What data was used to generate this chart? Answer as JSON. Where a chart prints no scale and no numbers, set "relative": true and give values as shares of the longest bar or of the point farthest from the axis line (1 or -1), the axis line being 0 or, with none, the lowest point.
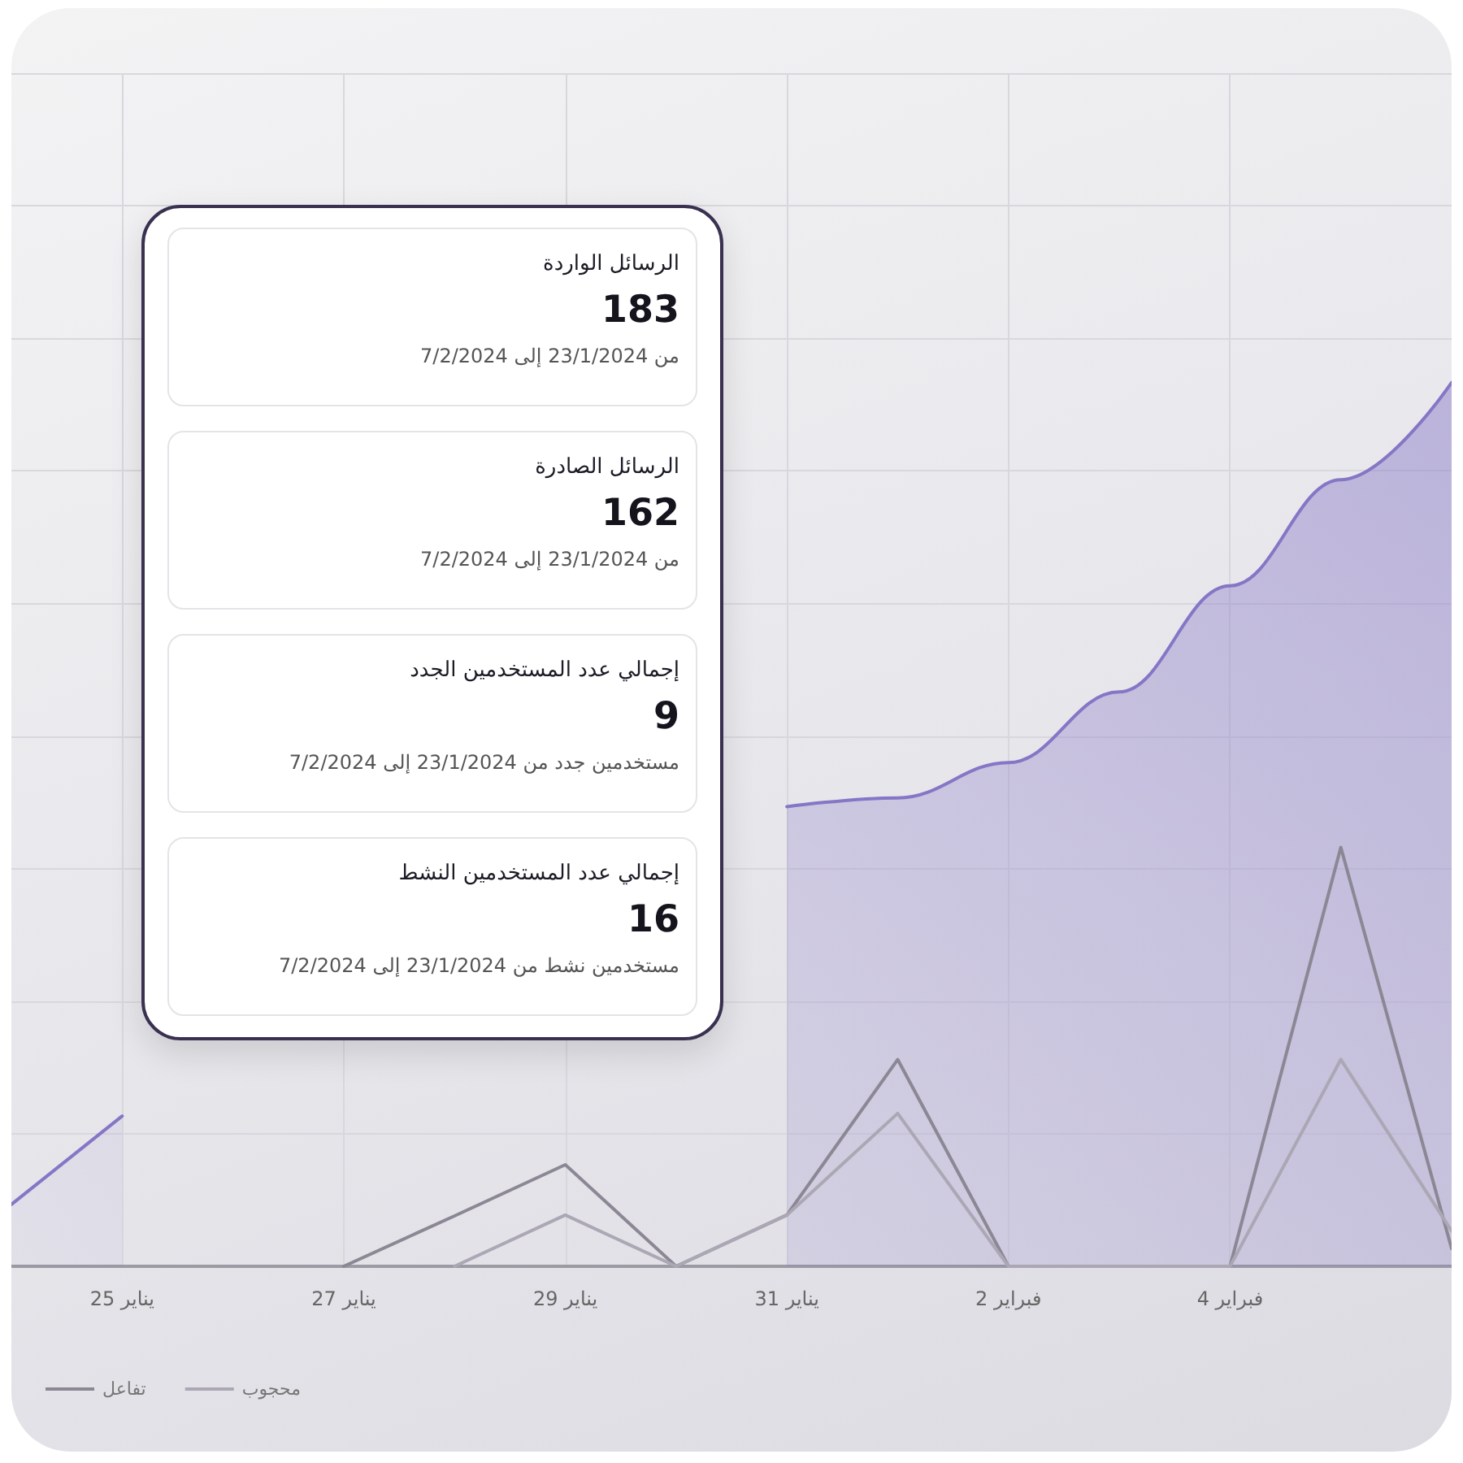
{
  "chart_data": [
    {
      "type": "line",
      "relative": true,
      "x": [
        "--01-24",
        "--01-25",
        "--01-26",
        "--01-27",
        "--01-28",
        "--01-29",
        "--01-30",
        "--01-31",
        "--02-01",
        "--02-02",
        "--02-03",
        "--02-04",
        "--02-05",
        "--02-06"
      ],
      "xlim": [
        "--01-24",
        "--02-06"
      ],
      "xticks": [
        {
          "value": "--01-25",
          "label": "25 يناير"
        },
        {
          "value": "--01-27",
          "label": "27 يناير"
        },
        {
          "value": "--01-29",
          "label": "29 يناير"
        },
        {
          "value": "--01-31",
          "label": "31 يناير"
        },
        {
          "value": "--02-02",
          "label": "2 فبراير"
        },
        {
          "value": "--02-04",
          "label": "4 فبراير"
        }
      ],
      "series": [
        {
          "type": "area",
          "color": "#8576c6",
          "values": [
            0.07,
            0.17,
            null,
            null,
            null,
            null,
            null,
            0.52,
            0.53,
            0.57,
            0.65,
            0.77,
            0.89,
            1.0
          ]
        },
        {
          "name": "تفاعل",
          "color": "#8c8794",
          "values": [
            null,
            null,
            null,
            0,
            0.057,
            0.115,
            0,
            0.058,
            0.234,
            0,
            0,
            0,
            0.474,
            0.02
          ]
        },
        {
          "name": "محجوب",
          "color": "#aca7b4",
          "values": [
            null,
            null,
            null,
            null,
            0,
            0.058,
            0,
            0.058,
            0.173,
            0,
            0,
            0,
            0.234,
            0.04
          ]
        }
      ],
      "grid": true,
      "legend": "bottom left",
      "marker": "none",
      "line_style": "solid"
    },
    {
      "type": "other",
      "categories": [
        "الرسائل الواردة",
        "الرسائل الصادرة",
        "إجمالي عدد المستخدمين الجدد",
        "إجمالي عدد المستخدمين النشط"
      ],
      "values": [
        183,
        162,
        9,
        16
      ],
      "data_labels": true,
      "annotations": [
        "من 23/1/2024 إلى 7/2/2024",
        "من 23/1/2024 إلى 7/2/2024",
        "مستخدمين جدد من 23/1/2024 إلى 7/2/2024",
        "مستخدمين نشط من 23/1/2024 إلى 7/2/2024"
      ]
    }
  ]
}
